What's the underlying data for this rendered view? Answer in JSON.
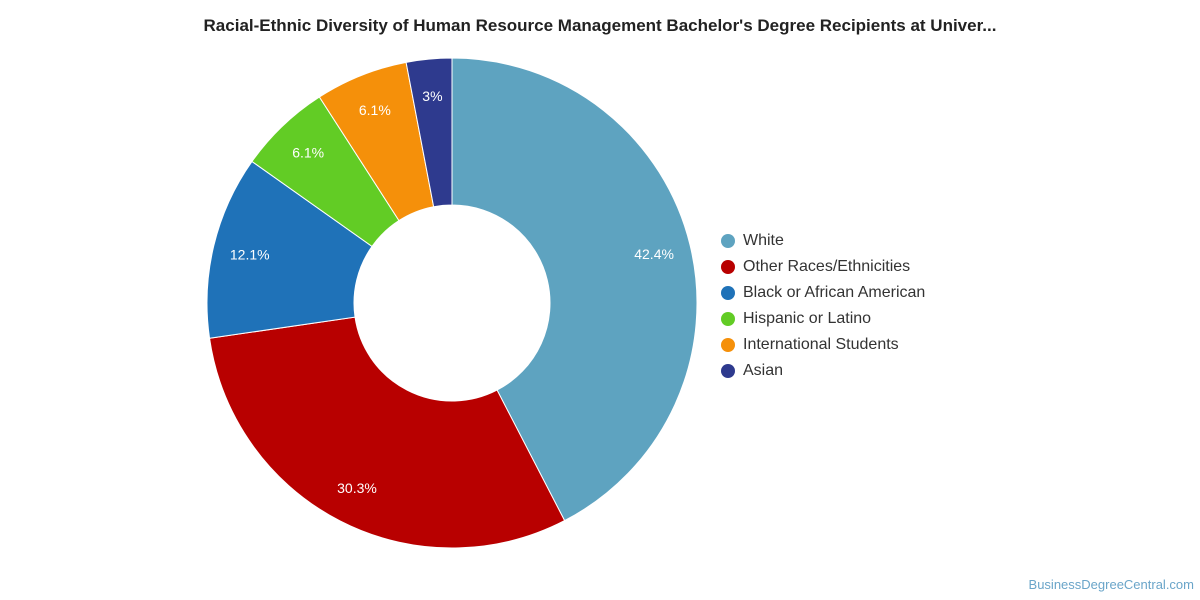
{
  "chart_data": {
    "type": "pie",
    "title": "Racial-Ethnic Diversity of Human Resource Management Bachelor's Degree Recipients at Univer...",
    "categories": [
      "White",
      "Other Races/Ethnicities",
      "Black or African American",
      "Hispanic or Latino",
      "International Students",
      "Asian"
    ],
    "values": [
      42.4,
      30.3,
      12.1,
      6.1,
      6.1,
      3
    ],
    "data_labels": [
      "42.4%",
      "30.3%",
      "12.1%",
      "6.1%",
      "6.1%",
      "3%"
    ],
    "colors": [
      "#5ea3c0",
      "#b80000",
      "#1f72b8",
      "#62cc25",
      "#f5900a",
      "#2e3a8e"
    ],
    "legend_position": "right",
    "donut": true
  },
  "footer": {
    "source": "BusinessDegreeCentral.com"
  }
}
